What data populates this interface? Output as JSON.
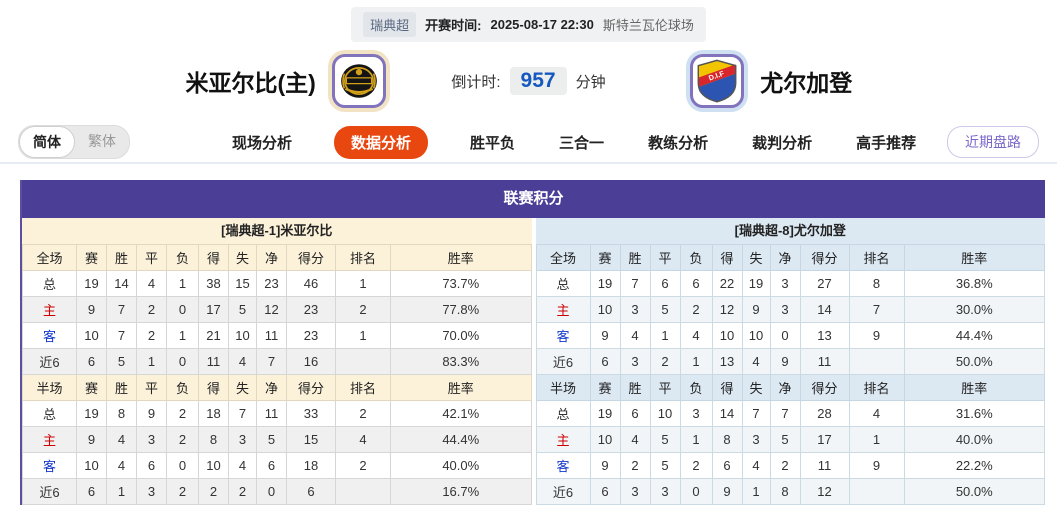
{
  "match_header": {
    "league": "瑞典超",
    "kickoff_label": "开赛时间:",
    "kickoff_time": "2025-08-17 22:30",
    "venue": "斯特兰瓦伦球场",
    "home_team": "米亚尔比(主)",
    "away_team": "尤尔加登",
    "away_logo_text": "D.I.F",
    "countdown_label": "倒计时:",
    "countdown_value": "957",
    "countdown_unit": "分钟"
  },
  "nav": {
    "lang_simplified": "简体",
    "lang_traditional": "繁体",
    "tabs": [
      {
        "label": "现场分析",
        "active": false
      },
      {
        "label": "数据分析",
        "active": true
      },
      {
        "label": "胜平负",
        "active": false
      },
      {
        "label": "三合一",
        "active": false
      },
      {
        "label": "教练分析",
        "active": false
      },
      {
        "label": "裁判分析",
        "active": false
      },
      {
        "label": "高手推荐",
        "active": false
      }
    ],
    "recent_button": "近期盘路"
  },
  "league_table": {
    "title": "联赛积分",
    "home_header": "[瑞典超-1]米亚尔比",
    "away_header": "[瑞典超-8]尤尔加登",
    "columns_full": [
      "全场",
      "赛",
      "胜",
      "平",
      "负",
      "得",
      "失",
      "净",
      "得分",
      "排名",
      "胜率"
    ],
    "columns_half": [
      "半场",
      "赛",
      "胜",
      "平",
      "负",
      "得",
      "失",
      "净",
      "得分",
      "排名",
      "胜率"
    ],
    "home": {
      "full": [
        [
          "总",
          "19",
          "14",
          "4",
          "1",
          "38",
          "15",
          "23",
          "46",
          "1",
          "73.7%"
        ],
        [
          "主",
          "9",
          "7",
          "2",
          "0",
          "17",
          "5",
          "12",
          "23",
          "2",
          "77.8%"
        ],
        [
          "客",
          "10",
          "7",
          "2",
          "1",
          "21",
          "10",
          "11",
          "23",
          "1",
          "70.0%"
        ],
        [
          "近6",
          "6",
          "5",
          "1",
          "0",
          "11",
          "4",
          "7",
          "16",
          "",
          "83.3%"
        ]
      ],
      "half": [
        [
          "总",
          "19",
          "8",
          "9",
          "2",
          "18",
          "7",
          "11",
          "33",
          "2",
          "42.1%"
        ],
        [
          "主",
          "9",
          "4",
          "3",
          "2",
          "8",
          "3",
          "5",
          "15",
          "4",
          "44.4%"
        ],
        [
          "客",
          "10",
          "4",
          "6",
          "0",
          "10",
          "4",
          "6",
          "18",
          "2",
          "40.0%"
        ],
        [
          "近6",
          "6",
          "1",
          "3",
          "2",
          "2",
          "2",
          "0",
          "6",
          "",
          "16.7%"
        ]
      ]
    },
    "away": {
      "full": [
        [
          "总",
          "19",
          "7",
          "6",
          "6",
          "22",
          "19",
          "3",
          "27",
          "8",
          "36.8%"
        ],
        [
          "主",
          "10",
          "3",
          "5",
          "2",
          "12",
          "9",
          "3",
          "14",
          "7",
          "30.0%"
        ],
        [
          "客",
          "9",
          "4",
          "1",
          "4",
          "10",
          "10",
          "0",
          "13",
          "9",
          "44.4%"
        ],
        [
          "近6",
          "6",
          "3",
          "2",
          "1",
          "13",
          "4",
          "9",
          "11",
          "",
          "50.0%"
        ]
      ],
      "half": [
        [
          "总",
          "19",
          "6",
          "10",
          "3",
          "14",
          "7",
          "7",
          "28",
          "4",
          "31.6%"
        ],
        [
          "主",
          "10",
          "4",
          "5",
          "1",
          "8",
          "3",
          "5",
          "17",
          "1",
          "40.0%"
        ],
        [
          "客",
          "9",
          "2",
          "5",
          "2",
          "6",
          "4",
          "2",
          "11",
          "9",
          "22.2%"
        ],
        [
          "近6",
          "6",
          "3",
          "3",
          "0",
          "9",
          "1",
          "8",
          "12",
          "",
          "50.0%"
        ]
      ]
    }
  },
  "colors": {
    "title_bar": "#4b3e97",
    "active_tab": "#e8470f",
    "home_header_bg": "#fcf2da",
    "away_header_bg": "#dce8f2",
    "home_label_red": "#cc0000",
    "away_label_blue": "#1438cc",
    "countdown_value": "#1558c0",
    "recent_button_text": "#7a68c9"
  }
}
